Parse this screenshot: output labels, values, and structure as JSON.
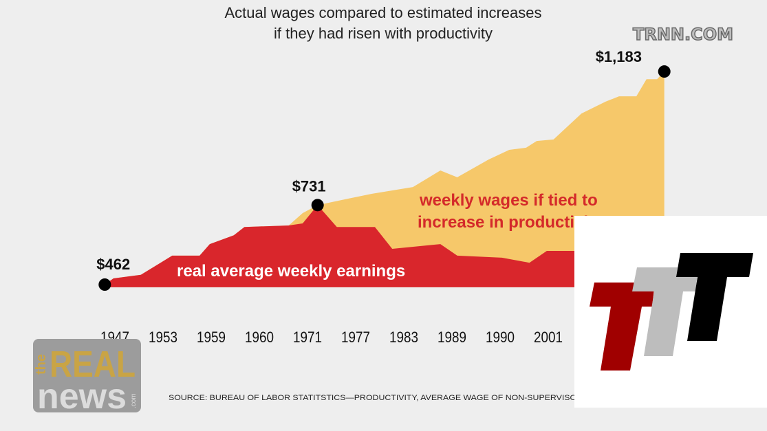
{
  "chart_data": {
    "type": "area",
    "title": "Actual wages compared to estimated increases",
    "subtitle": "if they had risen with productivity",
    "categories": [
      "1947",
      "1953",
      "1959",
      "1960",
      "1971",
      "1977",
      "1983",
      "1989",
      "1990",
      "2001"
    ],
    "x_unit": "tick index (0 = first year label)",
    "ylim": [
      453,
      1183
    ],
    "grid": false,
    "colors": {
      "productivity": "#f6c86a",
      "actual": "#d9262c",
      "background": "#eeeeee"
    },
    "series": [
      {
        "name": "weekly wages if tied to increase in productivity",
        "label_line1": "weekly wages if tied to",
        "label_line2": "increase in productivity",
        "points": [
          [
            -0.21,
            462
          ],
          [
            -0.03,
            483
          ],
          [
            0.54,
            495
          ],
          [
            1.19,
            560
          ],
          [
            1.76,
            560
          ],
          [
            1.97,
            599
          ],
          [
            2.47,
            629
          ],
          [
            2.69,
            657
          ],
          [
            3.61,
            662
          ],
          [
            3.9,
            704
          ],
          [
            4.21,
            731
          ],
          [
            4.76,
            750
          ],
          [
            5.33,
            769
          ],
          [
            6.19,
            792
          ],
          [
            6.76,
            848
          ],
          [
            7.11,
            825
          ],
          [
            7.76,
            885
          ],
          [
            8.19,
            918
          ],
          [
            8.54,
            925
          ],
          [
            8.76,
            948
          ],
          [
            9.11,
            953
          ],
          [
            9.69,
            1041
          ],
          [
            10.19,
            1081
          ],
          [
            10.47,
            1099
          ],
          [
            10.83,
            1099
          ],
          [
            11.04,
            1157
          ],
          [
            11.26,
            1157
          ],
          [
            11.41,
            1183
          ]
        ]
      },
      {
        "name": "real average weekly earnings",
        "points": [
          [
            -0.21,
            462
          ],
          [
            -0.03,
            483
          ],
          [
            0.54,
            495
          ],
          [
            1.19,
            560
          ],
          [
            1.76,
            560
          ],
          [
            1.97,
            599
          ],
          [
            2.47,
            629
          ],
          [
            2.69,
            657
          ],
          [
            3.61,
            662
          ],
          [
            3.9,
            669
          ],
          [
            4.21,
            731
          ],
          [
            4.61,
            657
          ],
          [
            5.4,
            657
          ],
          [
            5.76,
            583
          ],
          [
            6.76,
            599
          ],
          [
            7.11,
            560
          ],
          [
            8.04,
            553
          ],
          [
            8.61,
            536
          ],
          [
            8.97,
            576
          ],
          [
            9.54,
            576
          ],
          [
            11.41,
            576
          ]
        ]
      }
    ],
    "annotations": [
      {
        "label": "$462",
        "x": -0.21,
        "value": 462
      },
      {
        "label": "$731",
        "x": 4.21,
        "value": 731
      },
      {
        "label": "$1,183",
        "x": 11.41,
        "value": 1183
      }
    ],
    "source": "SOURCE: BUREAU OF LABOR STATITSTICS—PRODUCTIVITY, AVERAGE WAGE OF NON-SUPERVISORY PRO"
  },
  "watermark": "TRNN.COM",
  "logo_real_news": {
    "the": "the",
    "real": "REAL",
    "news": "news",
    "com": ".com"
  },
  "logo_ttt": {
    "colors": [
      "#a00000",
      "#bdbdbd",
      "#000000"
    ]
  }
}
